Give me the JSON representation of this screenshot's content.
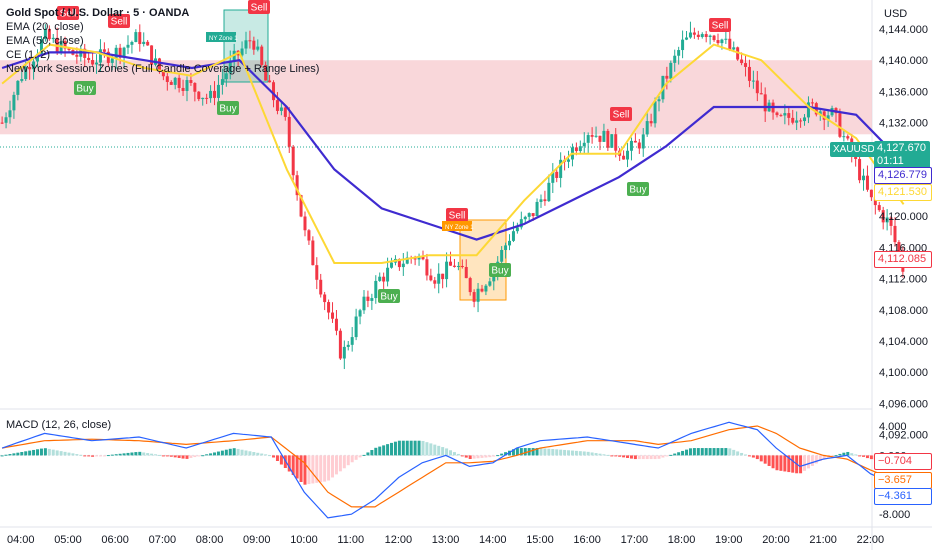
{
  "header": {
    "symbol_title": "Gold Spot / U.S. Dollar · 5 · OANDA",
    "ema20": "EMA (20, close)",
    "ema50": "EMA (50, close)",
    "ce": "CE (1, 2)",
    "session": "New York Session Zones (Full Candle Coverage + Range Lines)",
    "currency": "USD"
  },
  "price_axis": {
    "ticks": [
      "4,144.000",
      "4,140.000",
      "4,136.000",
      "4,132.000",
      "4,124.000",
      "4,120.000",
      "4,116.000",
      "4,112.000",
      "4,108.000",
      "4,104.000",
      "4,100.000",
      "4,096.000",
      "4,092.000"
    ],
    "last_symbol": "XAUUSD",
    "last_price": "4,127.670",
    "countdown": "01:11",
    "ema50_tag": "4,126.779",
    "ema20_tag": "4,121.530",
    "close_tag": "4,112.085"
  },
  "macd": {
    "title": "MACD (12, 26, close)",
    "ticks": [
      "4.000",
      "0.000",
      "-8.000"
    ],
    "hist_tag": "−0.704",
    "signal_tag": "−3.657",
    "macd_tag": "−4.361"
  },
  "time_axis": [
    "04:00",
    "05:00",
    "06:00",
    "07:00",
    "08:00",
    "09:00",
    "10:00",
    "11:00",
    "12:00",
    "13:00",
    "14:00",
    "15:00",
    "16:00",
    "17:00",
    "18:00",
    "19:00",
    "20:00",
    "21:00",
    "22:00"
  ],
  "signals": [
    {
      "type": "Sell",
      "label": "Sell"
    },
    {
      "type": "Sell",
      "label": "Sell"
    },
    {
      "type": "Sell",
      "label": "Sell"
    },
    {
      "type": "Buy",
      "label": "Buy"
    },
    {
      "type": "Buy",
      "label": "Buy"
    },
    {
      "type": "Sell",
      "label": "Sell"
    },
    {
      "type": "Sell",
      "label": "Sell"
    },
    {
      "type": "Sell",
      "label": "Sell"
    },
    {
      "type": "Buy",
      "label": "Buy"
    },
    {
      "type": "Buy",
      "label": "Buy"
    },
    {
      "type": "Buy",
      "label": "Buy"
    }
  ],
  "ny_zone_label": "NY Zone 1",
  "colors": {
    "up": "#22ab94",
    "down": "#f23645",
    "ema20": "#fdd835",
    "ema50": "#3f2bd0",
    "zone": "#f8cdd1",
    "macd": "#2962ff",
    "signal": "#ff6d00",
    "buy": "#4caf50",
    "sell": "#f23645"
  },
  "chart_data": {
    "type": "line",
    "title": "Gold Spot / U.S. Dollar · 5 · OANDA",
    "ylim": [
      4090,
      4148
    ],
    "y_ticks": [
      4144,
      4140,
      4136,
      4132,
      4124,
      4120,
      4116,
      4112,
      4108,
      4104,
      4100,
      4096,
      4092
    ],
    "x_ticks": [
      "04:00",
      "05:00",
      "06:00",
      "07:00",
      "08:00",
      "09:00",
      "10:00",
      "11:00",
      "12:00",
      "13:00",
      "14:00",
      "15:00",
      "16:00",
      "17:00",
      "18:00",
      "19:00",
      "20:00",
      "21:00",
      "22:00"
    ],
    "last_price": 4127.67,
    "close": 4112.085,
    "series": [
      {
        "name": "EMA (20, close)",
        "values_at_hours": [
          4137,
          4142,
          4141,
          4139,
          4138,
          4141,
          4126,
          4114,
          4114,
          4115,
          4115,
          4122,
          4128,
          4128,
          4137,
          4142,
          4140,
          4134,
          4130,
          4121.53
        ]
      },
      {
        "name": "EMA (50, close)",
        "values_at_hours": [
          4139,
          4141,
          4141,
          4140,
          4139,
          4140,
          4134,
          4126,
          4121,
          4119,
          4117,
          4119,
          4122,
          4125,
          4129,
          4134,
          4134,
          4134,
          4133,
          4126.779
        ]
      }
    ],
    "macd": {
      "name": "MACD (12, 26, close)",
      "ylim": [
        -9,
        5
      ],
      "macd_last": -4.361,
      "signal_last": -3.657,
      "hist_last": -0.704
    }
  }
}
